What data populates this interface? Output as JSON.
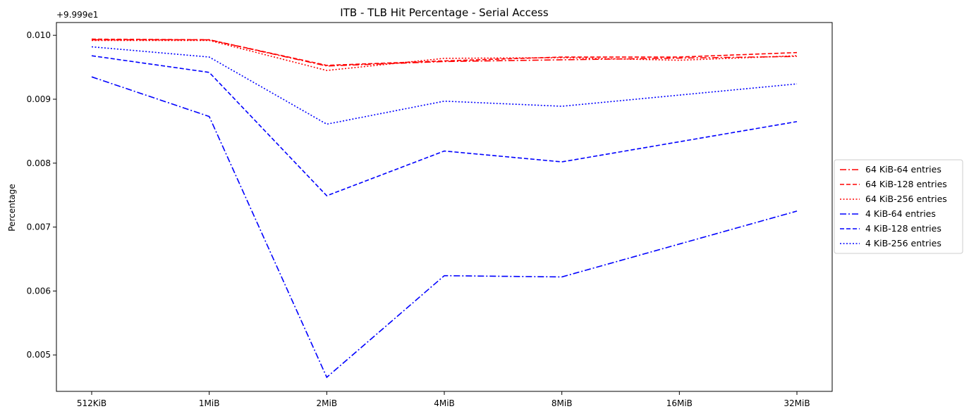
{
  "chart_data": {
    "type": "line",
    "title": "ITB - TLB Hit Percentage - Serial Access",
    "xlabel": "",
    "ylabel": "Percentage",
    "offset_text": "+9.999e1",
    "categories": [
      "512KiB",
      "1MiB",
      "2MiB",
      "4MiB",
      "8MiB",
      "16MiB",
      "32MiB"
    ],
    "ylim": [
      0.00443,
      0.0102
    ],
    "yticks": [
      0.005,
      0.006,
      0.007,
      0.008,
      0.009,
      0.01
    ],
    "ytick_labels": [
      "0.005",
      "0.006",
      "0.007",
      "0.008",
      "0.009",
      "0.010"
    ],
    "grid": false,
    "legend_position": "right",
    "series": [
      {
        "name": "64 KiB-64 entries",
        "color": "#ff0000",
        "dash": "dashdot",
        "x": [
          0,
          1,
          2,
          3,
          6
        ],
        "values": [
          0.00993,
          0.00993,
          0.00952,
          0.00959,
          0.00967
        ]
      },
      {
        "name": "64 KiB-128 entries",
        "color": "#ff0000",
        "dash": "dashed",
        "x": [
          0,
          1,
          2,
          3,
          4,
          5,
          6
        ],
        "values": [
          0.00994,
          0.00993,
          0.00953,
          0.0096,
          0.00966,
          0.00966,
          0.00973
        ]
      },
      {
        "name": "64 KiB-256 entries",
        "color": "#ff0000",
        "dash": "dotted",
        "x": [
          0,
          1,
          2,
          3,
          4,
          5,
          6
        ],
        "values": [
          0.00992,
          0.00992,
          0.00945,
          0.00964,
          0.00965,
          0.00961,
          0.00968
        ]
      },
      {
        "name": "4 KiB-64 entries",
        "color": "#0000ff",
        "dash": "dashdot",
        "x": [
          0,
          1,
          2,
          3,
          4,
          6
        ],
        "values": [
          0.00935,
          0.00873,
          0.00465,
          0.00624,
          0.00622,
          0.00725
        ]
      },
      {
        "name": "4 KiB-128 entries",
        "color": "#0000ff",
        "dash": "dashed",
        "x": [
          0,
          1,
          2,
          3,
          4,
          6
        ],
        "values": [
          0.00968,
          0.00942,
          0.00749,
          0.00819,
          0.00802,
          0.00865
        ]
      },
      {
        "name": "4 KiB-256 entries",
        "color": "#0000ff",
        "dash": "dotted",
        "x": [
          0,
          1,
          2,
          3,
          4,
          6
        ],
        "values": [
          0.00982,
          0.00966,
          0.00861,
          0.00897,
          0.00889,
          0.00924
        ]
      }
    ]
  }
}
